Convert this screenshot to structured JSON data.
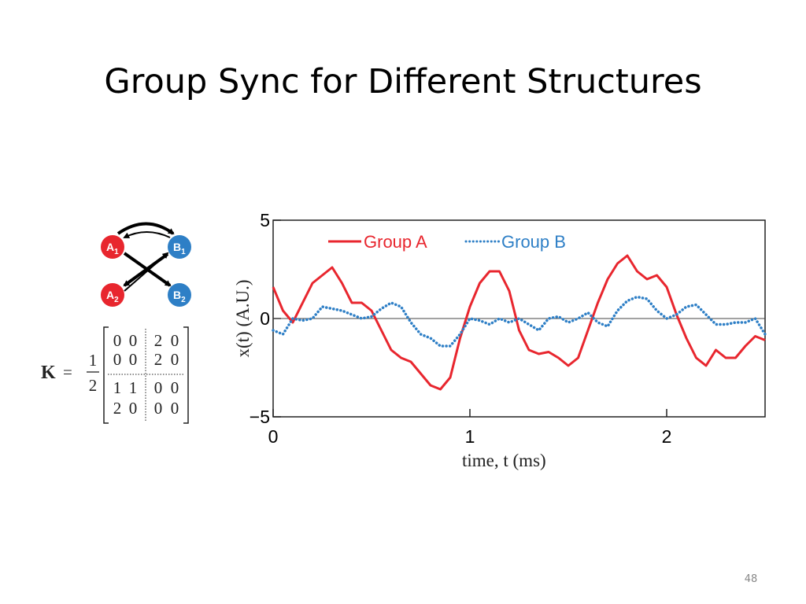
{
  "slide": {
    "title": "Group Sync for Different Structures",
    "page_number": "48"
  },
  "diagram": {
    "nodes": [
      {
        "letter": "A",
        "sub": "1"
      },
      {
        "letter": "B",
        "sub": "1"
      },
      {
        "letter": "A",
        "sub": "2"
      },
      {
        "letter": "B",
        "sub": "2"
      }
    ]
  },
  "matrix": {
    "symbol": "K",
    "equals": "=",
    "numerator": "1",
    "denominator": "2",
    "rows": [
      [
        "0",
        "0",
        "2",
        "0"
      ],
      [
        "0",
        "0",
        "2",
        "0"
      ],
      [
        "1",
        "1",
        "0",
        "0"
      ],
      [
        "2",
        "0",
        "0",
        "0"
      ]
    ]
  },
  "chart_data": {
    "type": "line",
    "xlabel": "time, t (ms)",
    "ylabel": "x(t) (A.U.)",
    "x": [
      0,
      0.05,
      0.1,
      0.15,
      0.2,
      0.25,
      0.3,
      0.35,
      0.4,
      0.45,
      0.5,
      0.55,
      0.6,
      0.65,
      0.7,
      0.75,
      0.8,
      0.85,
      0.9,
      0.95,
      1,
      1.05,
      1.1,
      1.15,
      1.2,
      1.25,
      1.3,
      1.35,
      1.4,
      1.45,
      1.5,
      1.55,
      1.6,
      1.65,
      1.7,
      1.75,
      1.8,
      1.85,
      1.9,
      1.95,
      2,
      2.05,
      2.1,
      2.15,
      2.2,
      2.25,
      2.3,
      2.35,
      2.4,
      2.45,
      2.5
    ],
    "series": [
      {
        "name": "Group A",
        "color": "#e8262e",
        "dash": "solid",
        "values": [
          1.6,
          0.4,
          -0.2,
          0.8,
          1.8,
          2.2,
          2.6,
          1.8,
          0.8,
          0.8,
          0.4,
          -0.6,
          -1.6,
          -2.0,
          -2.2,
          -2.8,
          -3.4,
          -3.6,
          -3.0,
          -1.0,
          0.6,
          1.8,
          2.4,
          2.4,
          1.4,
          -0.6,
          -1.6,
          -1.8,
          -1.7,
          -2.0,
          -2.4,
          -2.0,
          -0.6,
          0.8,
          2.0,
          2.8,
          3.2,
          2.4,
          2.0,
          2.2,
          1.6,
          0.2,
          -1.0,
          -2.0,
          -2.4,
          -1.6,
          -2.0,
          -2.0,
          -1.4,
          -0.9,
          -1.1
        ]
      },
      {
        "name": "Group B",
        "color": "#2e7fc6",
        "dash": "dotted",
        "values": [
          -0.6,
          -0.8,
          0,
          -0.1,
          0,
          0.6,
          0.5,
          0.4,
          0.2,
          0,
          0.1,
          0.5,
          0.8,
          0.6,
          -0.2,
          -0.8,
          -1.0,
          -1.4,
          -1.4,
          -0.8,
          0,
          -0.1,
          -0.3,
          0,
          -0.2,
          0,
          -0.3,
          -0.6,
          0,
          0.1,
          -0.2,
          0,
          0.3,
          -0.2,
          -0.4,
          0.4,
          0.9,
          1.1,
          1.0,
          0.4,
          0,
          0.2,
          0.6,
          0.7,
          0.2,
          -0.3,
          -0.3,
          -0.2,
          -0.2,
          0,
          -0.8
        ]
      }
    ],
    "xlim": [
      0,
      2.5
    ],
    "xticks": [
      0,
      1,
      2
    ],
    "ylim": [
      -5,
      5
    ],
    "yticks": [
      {
        "value": -5,
        "label": "−5"
      },
      0,
      5
    ],
    "zero_line": true,
    "legend": "top-left"
  }
}
